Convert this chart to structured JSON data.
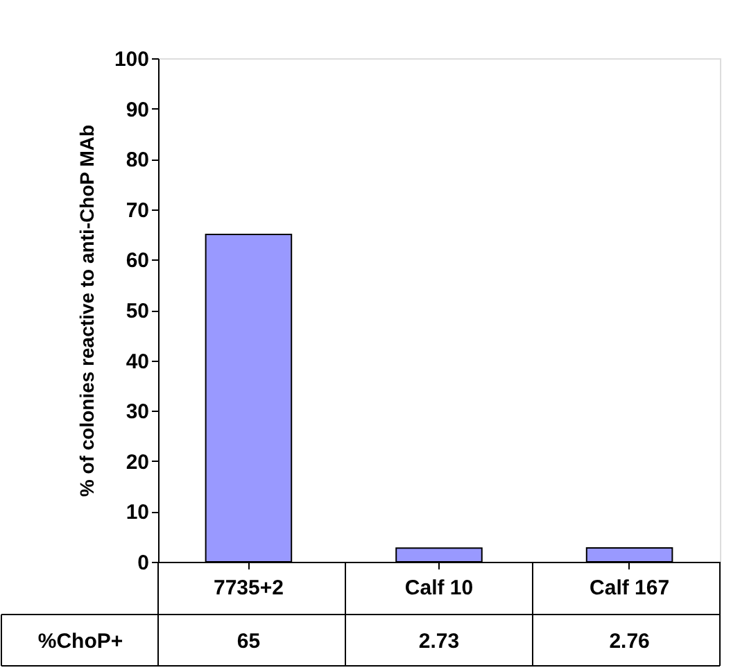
{
  "chart_data": {
    "type": "bar",
    "ylabel": "% of colonies reactive to anti-ChoP MAb",
    "categories": [
      "7735+2",
      "Calf 10",
      "Calf 167"
    ],
    "values": [
      65,
      2.73,
      2.76
    ],
    "color": "#9999ff",
    "ylim": [
      0,
      100
    ],
    "yticks": [
      0,
      10,
      20,
      30,
      40,
      50,
      60,
      70,
      80,
      90,
      100
    ],
    "grid": false,
    "data_labels": true,
    "annotations": [
      "%ChoP+"
    ]
  }
}
